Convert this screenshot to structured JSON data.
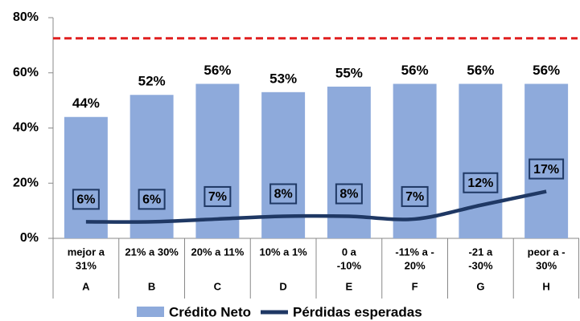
{
  "chart_data": {
    "type": "bar",
    "categories": [
      [
        "mejor a",
        "31%"
      ],
      [
        "21% a 30%"
      ],
      [
        "20% a 11%"
      ],
      [
        "10% a 1%"
      ],
      [
        "0 a",
        "-10%"
      ],
      [
        "-11% a -",
        "20%"
      ],
      [
        "-21 a",
        "-30%"
      ],
      [
        "peor a -",
        "30%"
      ]
    ],
    "groups": [
      "A",
      "B",
      "C",
      "D",
      "E",
      "F",
      "G",
      "H"
    ],
    "series": [
      {
        "name": "Crédito Neto",
        "type": "bar",
        "color": "#8eaadb",
        "values": [
          44,
          52,
          56,
          53,
          55,
          56,
          56,
          56
        ],
        "value_labels": [
          "44%",
          "52%",
          "56%",
          "53%",
          "55%",
          "56%",
          "56%",
          "56%"
        ]
      },
      {
        "name": "Pérdidas esperadas",
        "type": "line",
        "color": "#1f3864",
        "values": [
          6,
          6,
          7,
          8,
          8,
          7,
          12,
          17
        ],
        "value_labels": [
          "6%",
          "6%",
          "7%",
          "8%",
          "8%",
          "7%",
          "12%",
          "17%"
        ]
      }
    ],
    "reference_line": {
      "value": 72.5,
      "color": "#e02020"
    },
    "ylim": [
      0,
      80
    ],
    "yticks": [
      {
        "value": 0,
        "label": "0%"
      },
      {
        "value": 20,
        "label": "20%"
      },
      {
        "value": 40,
        "label": "40%"
      },
      {
        "value": 60,
        "label": "60%"
      },
      {
        "value": 80,
        "label": "80%"
      }
    ]
  }
}
